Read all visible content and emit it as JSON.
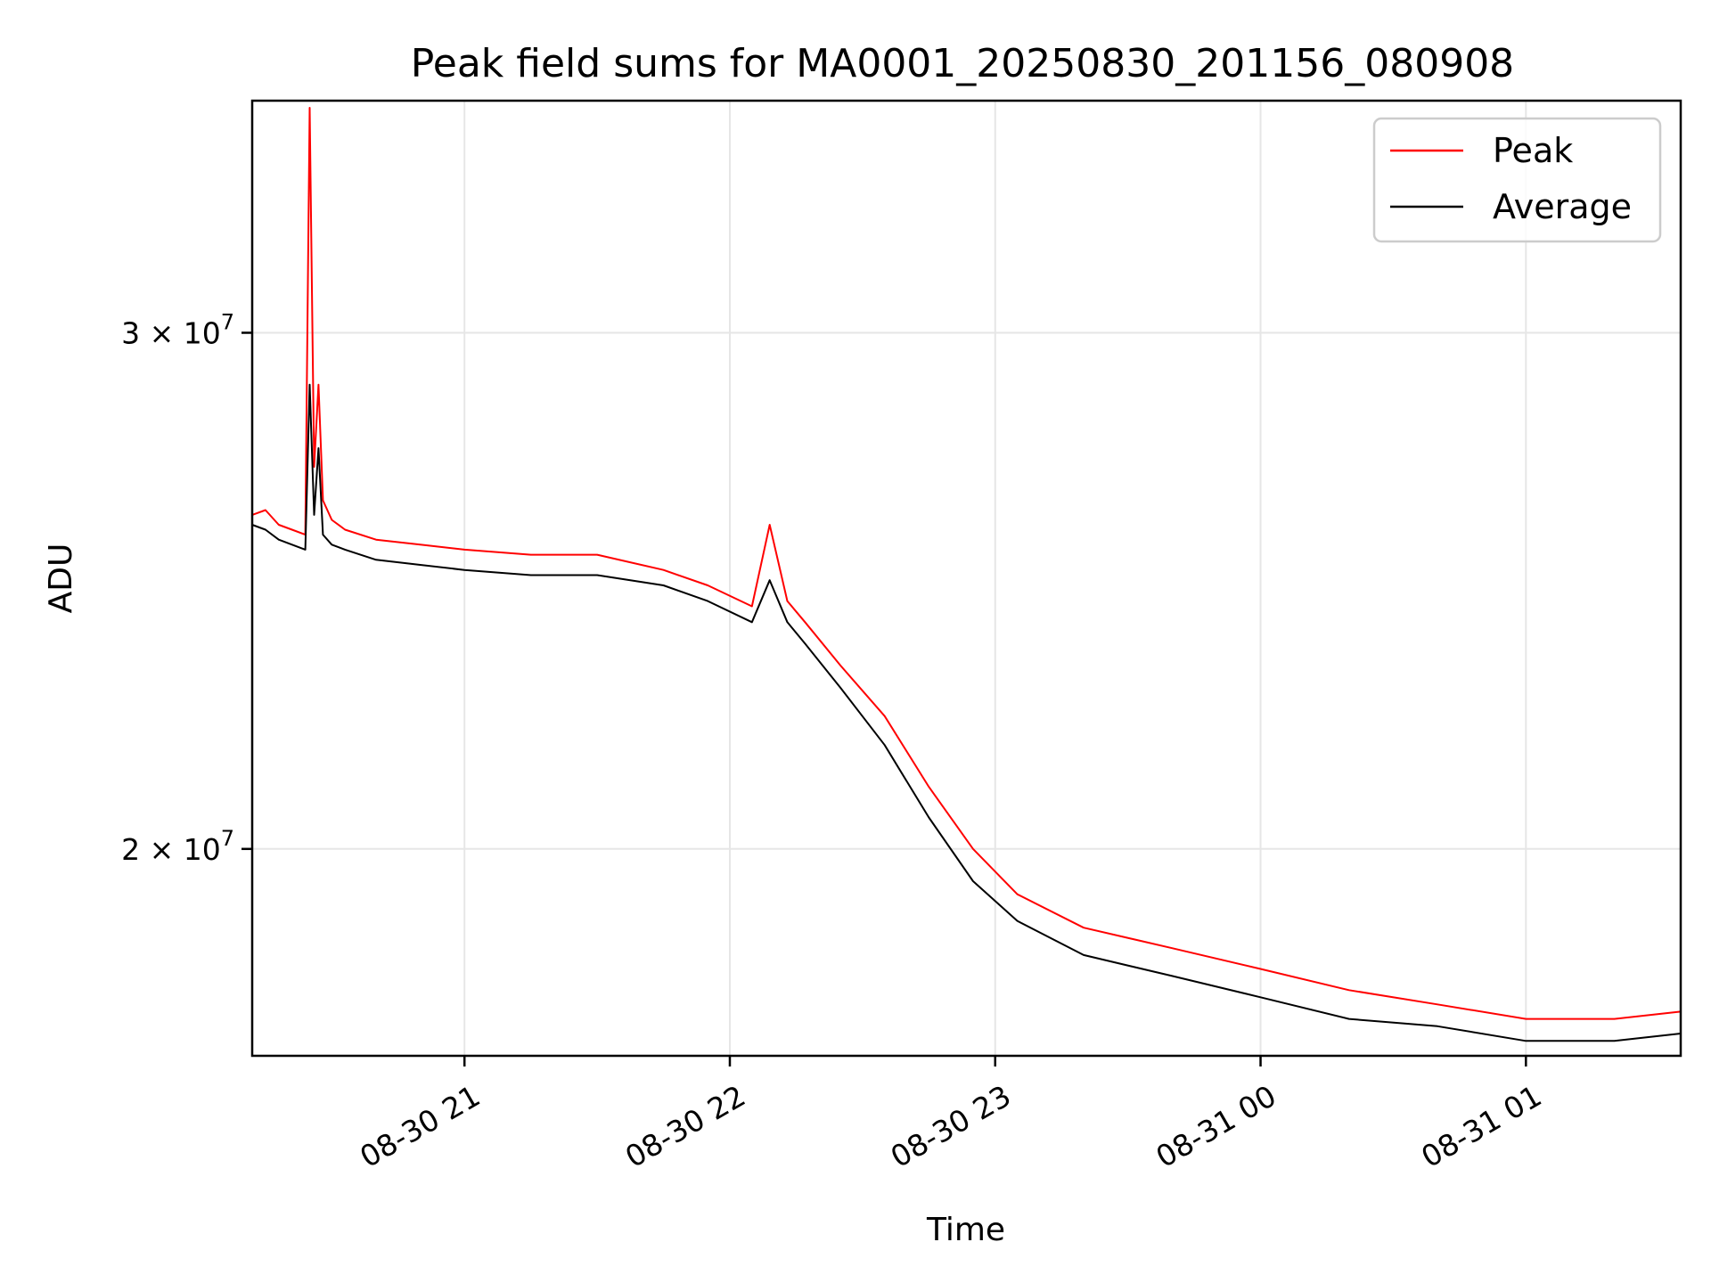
{
  "chart_data": {
    "type": "line",
    "title": "Peak field sums for MA0001_20250830_201156_080908",
    "xlabel": "Time",
    "ylabel": "ADU",
    "x_range": [
      "2025-08-30 20:12:00",
      "2025-08-31 01:35:00"
    ],
    "ylim": [
      17000000,
      36000000
    ],
    "y_scale": "log",
    "grid": true,
    "legend_position": "top-right",
    "x_ticks": [
      {
        "value": "2025-08-30 21:00",
        "label": "08-30 21"
      },
      {
        "value": "2025-08-30 22:00",
        "label": "08-30 22"
      },
      {
        "value": "2025-08-30 23:00",
        "label": "08-30 23"
      },
      {
        "value": "2025-08-31 00:00",
        "label": "08-31 00"
      },
      {
        "value": "2025-08-31 01:00",
        "label": "08-31 01"
      }
    ],
    "y_ticks": [
      {
        "value": 20000000,
        "mantissa": "2",
        "exponent": "7"
      },
      {
        "value": 30000000,
        "mantissa": "3",
        "exponent": "7"
      }
    ],
    "series": [
      {
        "name": "Peak",
        "color": "#ff0000",
        "x": [
          "2025-08-30 20:12",
          "2025-08-30 20:15",
          "2025-08-30 20:18",
          "2025-08-30 20:21",
          "2025-08-30 20:24",
          "2025-08-30 20:25",
          "2025-08-30 20:26",
          "2025-08-30 20:27",
          "2025-08-30 20:28",
          "2025-08-30 20:30",
          "2025-08-30 20:33",
          "2025-08-30 20:40",
          "2025-08-30 20:50",
          "2025-08-30 21:00",
          "2025-08-30 21:15",
          "2025-08-30 21:30",
          "2025-08-30 21:45",
          "2025-08-30 21:55",
          "2025-08-30 22:05",
          "2025-08-30 22:09",
          "2025-08-30 22:13",
          "2025-08-30 22:17",
          "2025-08-30 22:25",
          "2025-08-30 22:35",
          "2025-08-30 22:45",
          "2025-08-30 22:55",
          "2025-08-30 23:05",
          "2025-08-30 23:20",
          "2025-08-30 23:40",
          "2025-08-31 00:00",
          "2025-08-31 00:20",
          "2025-08-31 00:40",
          "2025-08-31 01:00",
          "2025-08-31 01:20",
          "2025-08-31 01:35"
        ],
        "values": [
          26000000,
          26100000,
          25800000,
          25700000,
          25600000,
          35800000,
          27000000,
          28800000,
          26300000,
          25900000,
          25700000,
          25500000,
          25400000,
          25300000,
          25200000,
          25200000,
          24900000,
          24600000,
          24200000,
          25800000,
          24300000,
          23900000,
          23100000,
          22200000,
          21000000,
          20000000,
          19300000,
          18800000,
          18500000,
          18200000,
          17900000,
          17700000,
          17500000,
          17500000,
          17600000
        ]
      },
      {
        "name": "Average",
        "color": "#000000",
        "x": [
          "2025-08-30 20:12",
          "2025-08-30 20:15",
          "2025-08-30 20:18",
          "2025-08-30 20:21",
          "2025-08-30 20:24",
          "2025-08-30 20:25",
          "2025-08-30 20:26",
          "2025-08-30 20:27",
          "2025-08-30 20:28",
          "2025-08-30 20:30",
          "2025-08-30 20:33",
          "2025-08-30 20:40",
          "2025-08-30 20:50",
          "2025-08-30 21:00",
          "2025-08-30 21:15",
          "2025-08-30 21:30",
          "2025-08-30 21:45",
          "2025-08-30 21:55",
          "2025-08-30 22:05",
          "2025-08-30 22:09",
          "2025-08-30 22:13",
          "2025-08-30 22:17",
          "2025-08-30 22:25",
          "2025-08-30 22:35",
          "2025-08-30 22:45",
          "2025-08-30 22:55",
          "2025-08-30 23:05",
          "2025-08-30 23:20",
          "2025-08-30 23:40",
          "2025-08-31 00:00",
          "2025-08-31 00:20",
          "2025-08-31 00:40",
          "2025-08-31 01:00",
          "2025-08-31 01:20",
          "2025-08-31 01:35"
        ],
        "values": [
          25800000,
          25700000,
          25500000,
          25400000,
          25300000,
          28800000,
          26000000,
          27400000,
          25600000,
          25400000,
          25300000,
          25100000,
          25000000,
          24900000,
          24800000,
          24800000,
          24600000,
          24300000,
          23900000,
          24700000,
          23900000,
          23500000,
          22700000,
          21700000,
          20500000,
          19500000,
          18900000,
          18400000,
          18100000,
          17800000,
          17500000,
          17400000,
          17200000,
          17200000,
          17300000
        ]
      }
    ]
  }
}
